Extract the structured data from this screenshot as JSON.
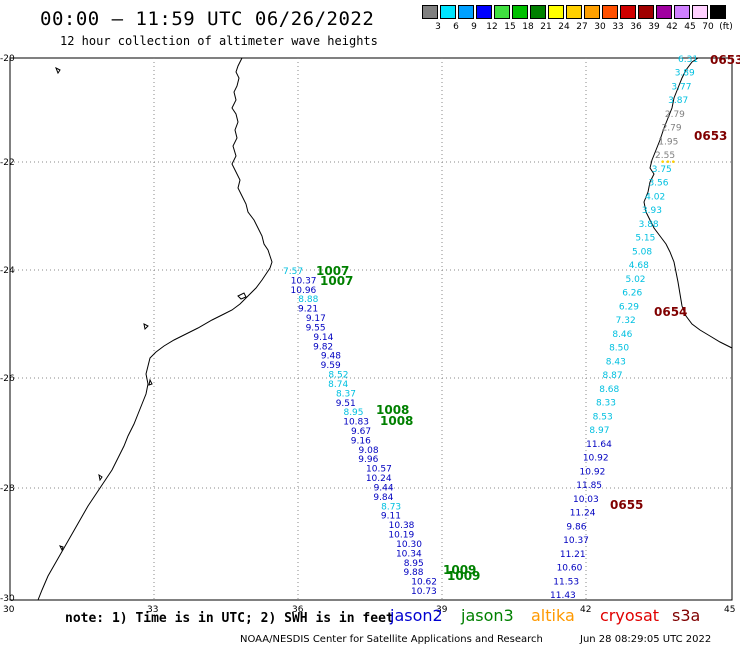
{
  "header": {
    "title": "00:00 – 11:59 UTC 06/26/2022",
    "subtitle": "12 hour collection of altimeter wave heights"
  },
  "scale": {
    "labels": [
      "3",
      "6",
      "9",
      "12",
      "15",
      "18",
      "21",
      "24",
      "27",
      "30",
      "33",
      "36",
      "39",
      "42",
      "45",
      "70",
      "(ft)"
    ],
    "colors": [
      "#808080",
      "#00e5ff",
      "#00a0ff",
      "#0000ff",
      "#40e040",
      "#00c000",
      "#008000",
      "#ffff00",
      "#ffd000",
      "#ffa000",
      "#ff5000",
      "#d00000",
      "#a00000",
      "#a000a0",
      "#d080ff",
      "#ffd0ff",
      "#000000"
    ]
  },
  "axes": {
    "lon_ticks": [
      "30",
      "33",
      "36",
      "39",
      "42",
      "45"
    ],
    "lat_ticks": [
      "-20",
      "-22",
      "-24",
      "-26",
      "-28",
      "-30"
    ]
  },
  "footer": {
    "note": "note:  1) Time is in UTC;  2) SWH is in feet",
    "missions": [
      {
        "name": "jason2",
        "color": "#0000d0"
      },
      {
        "name": "jason3",
        "color": "#008000"
      },
      {
        "name": "altika",
        "color": "#ff9900"
      },
      {
        "name": "cryosat",
        "color": "#e00000"
      },
      {
        "name": "s3a",
        "color": "#800000"
      }
    ],
    "credit": "NOAA/NESDIS Center for Satellite Applications and Research",
    "timestamp": "Jun 28 08:29:05 UTC 2022"
  },
  "tracks": {
    "west_top": [
      {
        "v": "7.57",
        "c": "#00c0e0"
      },
      {
        "v": "10.37",
        "c": "#0000c0"
      },
      {
        "v": "10.96",
        "c": "#0000c0"
      },
      {
        "v": "8.88",
        "c": "#00c0e0"
      },
      {
        "v": "9.21",
        "c": "#0000c0"
      },
      {
        "v": "9.17",
        "c": "#0000c0"
      },
      {
        "v": "9.55",
        "c": "#0000c0"
      },
      {
        "v": "9.14",
        "c": "#0000c0"
      },
      {
        "v": "9.82",
        "c": "#0000c0"
      },
      {
        "v": "9.48",
        "c": "#0000c0"
      },
      {
        "v": "9.59",
        "c": "#0000c0"
      },
      {
        "v": "8.52",
        "c": "#00c0e0"
      },
      {
        "v": "8.74",
        "c": "#00c0e0"
      },
      {
        "v": "8.37",
        "c": "#00c0e0"
      },
      {
        "v": "9.51",
        "c": "#0000c0"
      },
      {
        "v": "8.95",
        "c": "#00c0e0"
      },
      {
        "v": "10.83",
        "c": "#0000c0"
      },
      {
        "v": "9.67",
        "c": "#0000c0"
      },
      {
        "v": "9.16",
        "c": "#0000c0"
      },
      {
        "v": "9.08",
        "c": "#0000c0"
      },
      {
        "v": "9.96",
        "c": "#0000c0"
      },
      {
        "v": "10.57",
        "c": "#0000c0"
      },
      {
        "v": "10.24",
        "c": "#0000c0"
      },
      {
        "v": "9.44",
        "c": "#0000c0"
      },
      {
        "v": "9.84",
        "c": "#0000c0"
      },
      {
        "v": "8.73",
        "c": "#00c0e0"
      },
      {
        "v": "9.11",
        "c": "#0000c0"
      },
      {
        "v": "10.38",
        "c": "#0000c0"
      },
      {
        "v": "10.19",
        "c": "#0000c0"
      },
      {
        "v": "10.30",
        "c": "#0000c0"
      },
      {
        "v": "10.34",
        "c": "#0000c0"
      },
      {
        "v": "8.95",
        "c": "#0000c0"
      },
      {
        "v": "9.88",
        "c": "#0000c0"
      },
      {
        "v": "10.62",
        "c": "#0000c0"
      },
      {
        "v": "10.73",
        "c": "#0000c0"
      }
    ],
    "east": [
      {
        "v": "6.31",
        "c": "#00c0e0"
      },
      {
        "v": "3.89",
        "c": "#00c0e0"
      },
      {
        "v": "3.77",
        "c": "#00c0e0"
      },
      {
        "v": "3.87",
        "c": "#00c0e0"
      },
      {
        "v": "2.79",
        "c": "#808080"
      },
      {
        "v": "2.79",
        "c": "#808080"
      },
      {
        "v": "1.95",
        "c": "#808080"
      },
      {
        "v": "2.55",
        "c": "#808080"
      },
      {
        "v": "3.75",
        "c": "#00c0e0"
      },
      {
        "v": "3.56",
        "c": "#00c0e0"
      },
      {
        "v": "4.02",
        "c": "#00c0e0"
      },
      {
        "v": "3.93",
        "c": "#00c0e0"
      },
      {
        "v": "3.88",
        "c": "#00c0e0"
      },
      {
        "v": "5.15",
        "c": "#00c0e0"
      },
      {
        "v": "5.08",
        "c": "#00c0e0"
      },
      {
        "v": "4.68",
        "c": "#00c0e0"
      },
      {
        "v": "5.02",
        "c": "#00c0e0"
      },
      {
        "v": "6.26",
        "c": "#00c0e0"
      },
      {
        "v": "6.29",
        "c": "#00c0e0"
      },
      {
        "v": "7.32",
        "c": "#00c0e0"
      },
      {
        "v": "8.46",
        "c": "#00c0e0"
      },
      {
        "v": "8.50",
        "c": "#00c0e0"
      },
      {
        "v": "8.43",
        "c": "#00c0e0"
      },
      {
        "v": "8.87",
        "c": "#00c0e0"
      },
      {
        "v": "8.68",
        "c": "#00c0e0"
      },
      {
        "v": "8.33",
        "c": "#00c0e0"
      },
      {
        "v": "8.53",
        "c": "#00c0e0"
      },
      {
        "v": "8.97",
        "c": "#00c0e0"
      },
      {
        "v": "11.64",
        "c": "#0000c0"
      },
      {
        "v": "10.92",
        "c": "#0000c0"
      },
      {
        "v": "10.92",
        "c": "#0000c0"
      },
      {
        "v": "11.85",
        "c": "#0000c0"
      },
      {
        "v": "10.03",
        "c": "#0000c0"
      },
      {
        "v": "11.24",
        "c": "#0000c0"
      },
      {
        "v": "9.86",
        "c": "#0000c0"
      },
      {
        "v": "10.37",
        "c": "#0000c0"
      },
      {
        "v": "11.21",
        "c": "#0000c0"
      },
      {
        "v": "10.60",
        "c": "#0000c0"
      },
      {
        "v": "11.53",
        "c": "#0000c0"
      },
      {
        "v": "11.43",
        "c": "#0000c0"
      }
    ],
    "cycles": [
      {
        "v": "1007",
        "c": "#008000"
      },
      {
        "v": "1007",
        "c": "#008000"
      },
      {
        "v": "1008",
        "c": "#008000"
      },
      {
        "v": "1008",
        "c": "#008000"
      },
      {
        "v": "1009",
        "c": "#008000"
      },
      {
        "v": "1009",
        "c": "#008000"
      },
      {
        "v": "0653",
        "c": "#800000"
      },
      {
        "v": "0653",
        "c": "#800000"
      },
      {
        "v": "0654",
        "c": "#800000"
      },
      {
        "v": "0655",
        "c": "#800000"
      }
    ]
  }
}
